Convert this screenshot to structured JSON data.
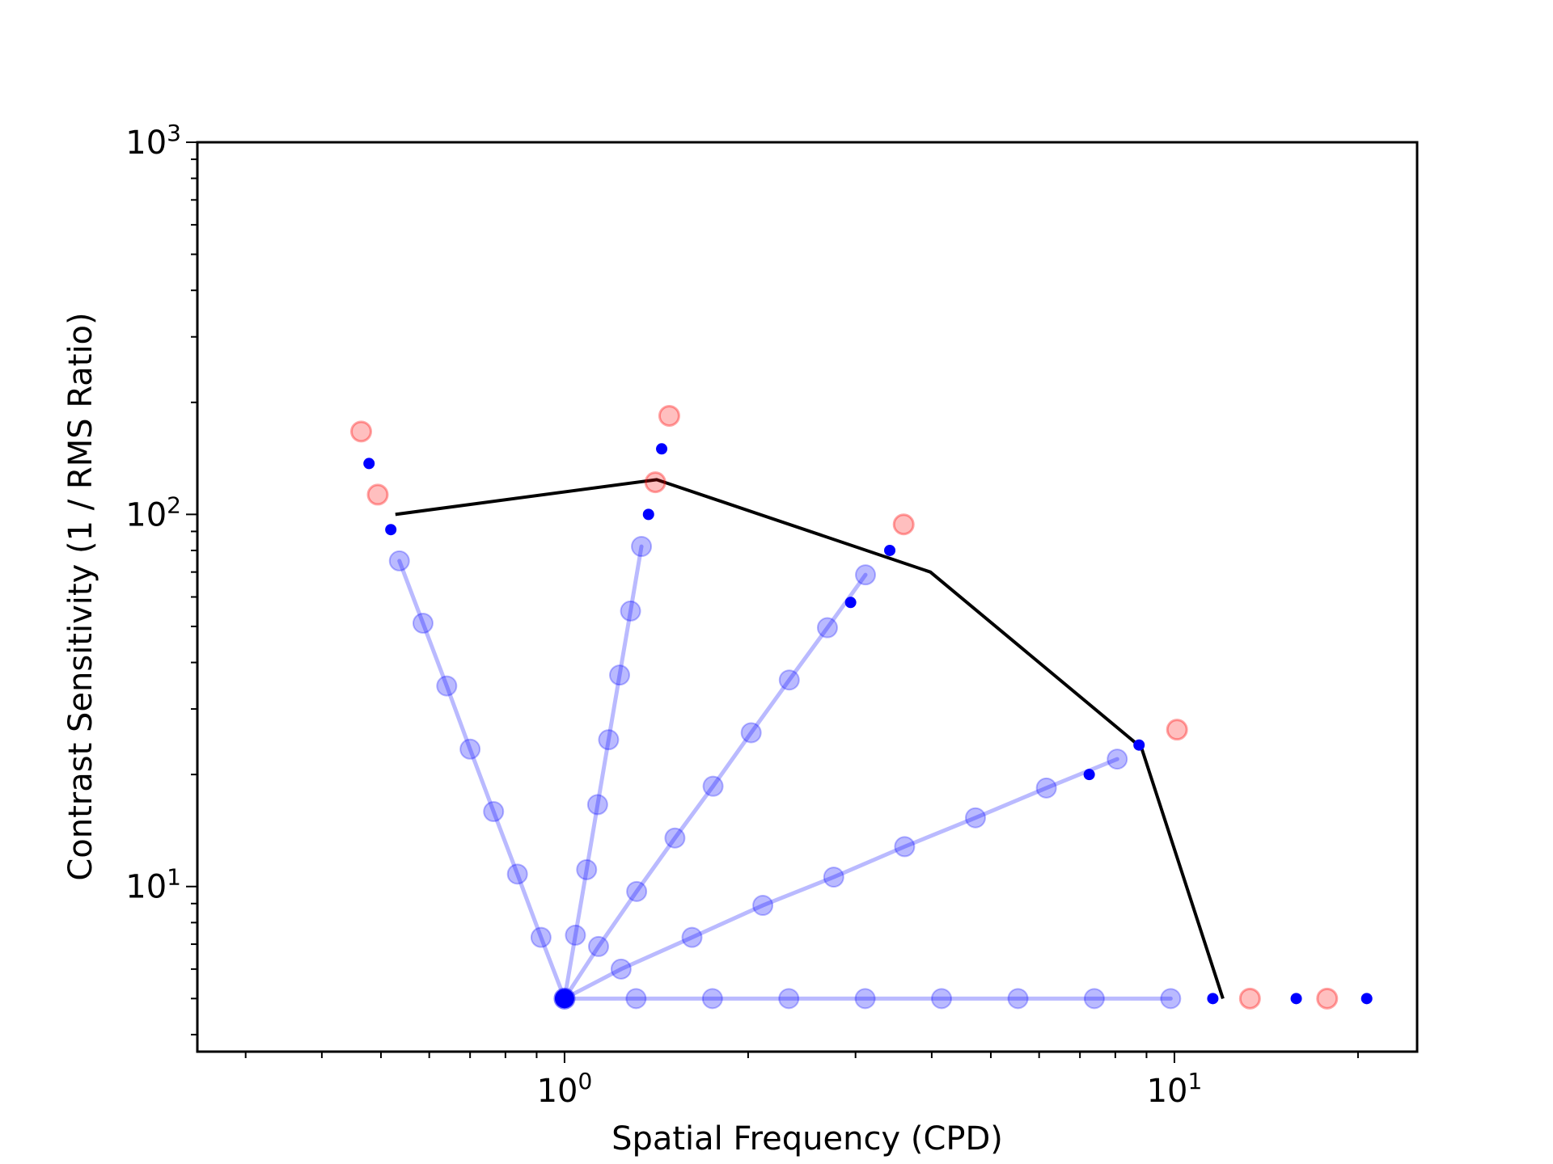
{
  "chart_data": {
    "type": "scatter",
    "title": "",
    "xlabel": "Spatial Frequency (CPD)",
    "ylabel": "Contrast Sensitivity (1 / RMS Ratio)",
    "xscale": "log",
    "yscale": "log",
    "xlim": [
      0.25,
      25
    ],
    "ylim": [
      3.6,
      1000
    ],
    "xticks": [
      {
        "base": "10",
        "exp": "0",
        "value": 1
      },
      {
        "base": "10",
        "exp": "1",
        "value": 10
      }
    ],
    "yticks": [
      {
        "base": "10",
        "exp": "1",
        "value": 10
      },
      {
        "base": "10",
        "exp": "2",
        "value": 100
      },
      {
        "base": "10",
        "exp": "3",
        "value": 1000
      }
    ],
    "grid": false,
    "legend": "none",
    "colors": {
      "ray": "#0000ff",
      "ray_opacity": 0.27,
      "red_marker": "#ff0000",
      "threshold_curve": "#000000"
    },
    "origin": {
      "x": 1.0,
      "y": 5.0
    },
    "rays": [
      {
        "light_points": [
          [
            1.0,
            5.0
          ],
          [
            0.915,
            7.3
          ],
          [
            0.837,
            10.8
          ],
          [
            0.765,
            15.9
          ],
          [
            0.7,
            23.4
          ],
          [
            0.641,
            34.6
          ],
          [
            0.586,
            51.0
          ],
          [
            0.536,
            75.0
          ]
        ],
        "solid_points": [
          [
            0.519,
            91
          ],
          [
            0.478,
            137
          ]
        ],
        "red_points": [
          [
            0.494,
            113
          ],
          [
            0.464,
            167
          ]
        ]
      },
      {
        "light_points": [
          [
            1.0,
            5.0
          ],
          [
            1.042,
            7.4
          ],
          [
            1.087,
            11.1
          ],
          [
            1.133,
            16.6
          ],
          [
            1.181,
            24.8
          ],
          [
            1.231,
            37.0
          ],
          [
            1.283,
            55.0
          ],
          [
            1.337,
            82.0
          ]
        ],
        "solid_points": [
          [
            1.373,
            100
          ],
          [
            1.443,
            150
          ]
        ],
        "red_points": [
          [
            1.409,
            122
          ],
          [
            1.485,
            184
          ]
        ]
      },
      {
        "light_points": [
          [
            1.0,
            5.0
          ],
          [
            1.137,
            6.9
          ],
          [
            1.313,
            9.7
          ],
          [
            1.517,
            13.5
          ],
          [
            1.752,
            18.6
          ],
          [
            2.023,
            25.9
          ],
          [
            2.336,
            35.9
          ],
          [
            2.698,
            49.6
          ],
          [
            3.115,
            68.8
          ]
        ],
        "solid_points": [
          [
            2.945,
            58
          ],
          [
            3.414,
            80
          ]
        ],
        "red_points": [
          [
            3.598,
            94
          ]
        ]
      },
      {
        "light_points": [
          [
            1.0,
            5.0
          ],
          [
            1.238,
            6.0
          ],
          [
            1.618,
            7.3
          ],
          [
            2.114,
            8.9
          ],
          [
            2.763,
            10.6
          ],
          [
            3.611,
            12.8
          ],
          [
            4.718,
            15.3
          ],
          [
            6.166,
            18.4
          ],
          [
            8.058,
            22.0
          ]
        ],
        "solid_points": [
          [
            7.25,
            20
          ],
          [
            8.75,
            24
          ]
        ],
        "red_points": [
          [
            10.1,
            26.4
          ]
        ]
      },
      {
        "light_points": [
          [
            1.0,
            5.0
          ],
          [
            1.31,
            5.0
          ],
          [
            1.748,
            5.0
          ],
          [
            2.332,
            5.0
          ],
          [
            3.111,
            5.0
          ],
          [
            4.151,
            5.0
          ],
          [
            5.54,
            5.0
          ],
          [
            7.39,
            5.0
          ],
          [
            9.86,
            5.0
          ]
        ],
        "solid_points": [
          [
            11.56,
            5.0
          ],
          [
            15.84,
            5.0
          ],
          [
            20.67,
            5.0
          ]
        ],
        "red_points": [
          [
            13.3,
            5.0
          ],
          [
            17.8,
            5.0
          ]
        ]
      }
    ],
    "threshold_curve": [
      [
        0.528,
        100
      ],
      [
        1.416,
        124
      ],
      [
        3.98,
        70
      ],
      [
        8.83,
        23.6
      ],
      [
        12.01,
        5.0
      ]
    ]
  }
}
